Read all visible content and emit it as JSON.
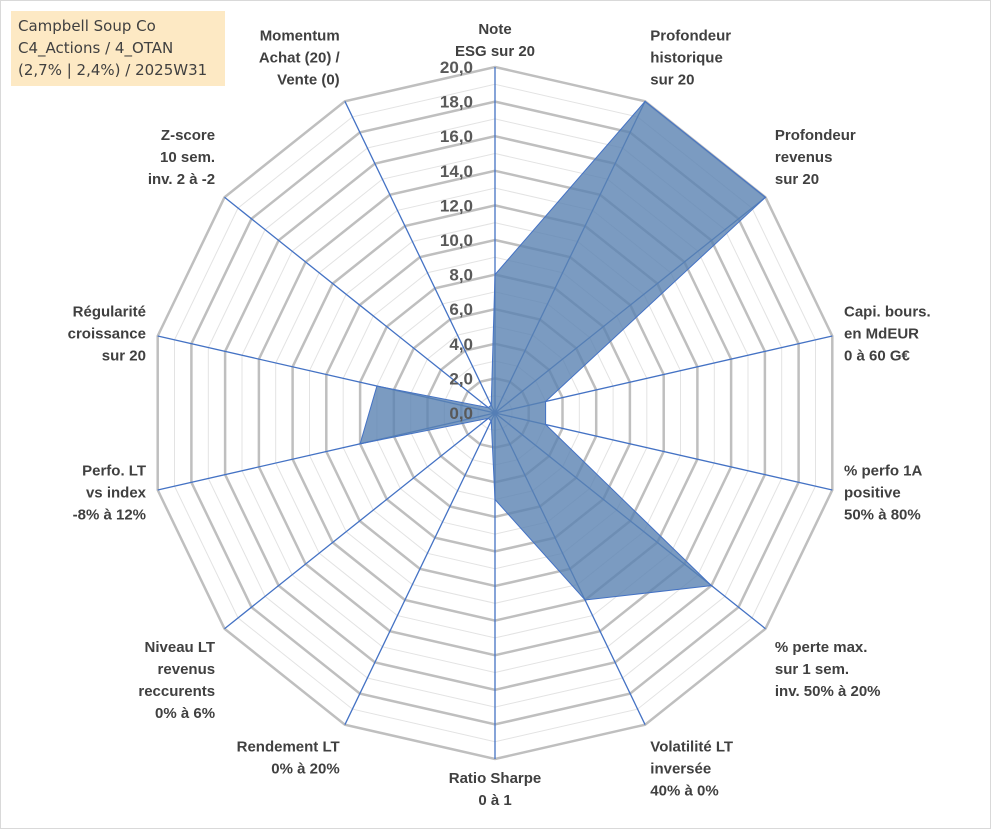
{
  "info": {
    "line1": "Campbell Soup Co",
    "line2": "C4_Actions / 4_OTAN",
    "line3": "(2,7% | 2,4%) / 2025W31"
  },
  "colors": {
    "fill": "#5a82b2",
    "spoke": "#4472c4",
    "ring": "#bfbfbf",
    "minor_ring": "#e3e3e3"
  },
  "chart_data": {
    "type": "radar",
    "r_range": [
      0,
      20
    ],
    "major_ticks": [
      0,
      2,
      4,
      6,
      8,
      10,
      12,
      14,
      16,
      18,
      20
    ],
    "tick_labels": [
      "0,0",
      "2,0",
      "4,0",
      "6,0",
      "8,0",
      "10,0",
      "12,0",
      "14,0",
      "16,0",
      "18,0",
      "20,0"
    ],
    "axes": [
      {
        "label": [
          "Note",
          "ESG sur 20"
        ],
        "value": 8.0
      },
      {
        "label": [
          "Profondeur",
          "historique",
          "sur 20"
        ],
        "value": 20.0
      },
      {
        "label": [
          "Profondeur",
          "revenus",
          "sur 20"
        ],
        "value": 20.0
      },
      {
        "label": [
          "Capi. bours.",
          "en MdEUR",
          "0 à 60 G€"
        ],
        "value": 3.0
      },
      {
        "label": [
          "% perfo 1A",
          "positive",
          "50% à 80%"
        ],
        "value": 3.0
      },
      {
        "label": [
          "% perte max.",
          "sur 1 sem.",
          "inv. 50% à 20%"
        ],
        "value": 16.0
      },
      {
        "label": [
          "Volatilité LT",
          "inversée",
          "40% à 0%"
        ],
        "value": 12.0
      },
      {
        "label": [
          "Ratio Sharpe",
          "0 à 1"
        ],
        "value": 5.0
      },
      {
        "label": [
          "Rendement LT",
          "0% à 20%"
        ],
        "value": 0.5
      },
      {
        "label": [
          "Niveau LT",
          "revenus",
          "reccurents",
          "0% à 6%"
        ],
        "value": 0.5
      },
      {
        "label": [
          "Perfo. LT",
          "vs index",
          "-8% à 12%"
        ],
        "value": 8.0
      },
      {
        "label": [
          "Régularité",
          "croissance",
          "sur 20"
        ],
        "value": 7.0
      },
      {
        "label": [
          "Z-score",
          "10 sem.",
          "inv. 2 à -2"
        ],
        "value": 0.5
      },
      {
        "label": [
          "Momentum",
          "Achat (20) /",
          "Vente (0)"
        ],
        "value": 0.5
      }
    ]
  }
}
